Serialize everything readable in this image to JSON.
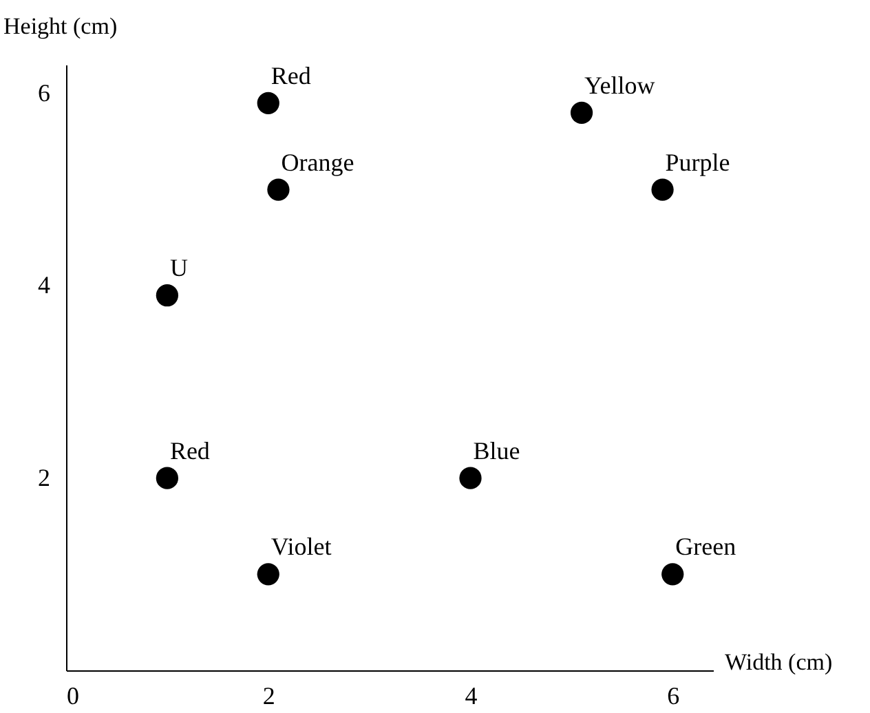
{
  "chart_data": {
    "type": "scatter",
    "xlabel": "Width (cm)",
    "ylabel": "Height (cm)",
    "x": [
      2,
      2.1,
      1,
      1,
      5.1,
      5.9,
      4,
      2,
      6
    ],
    "series": [
      {
        "color": "#000000",
        "values": [
          5.9,
          5,
          3.9,
          2,
          5.8,
          5,
          2,
          1,
          1
        ]
      }
    ],
    "annotations": [
      {
        "text": "Red",
        "x": 2,
        "y": 5.9
      },
      {
        "text": "Orange",
        "x": 2.1,
        "y": 5
      },
      {
        "text": "U",
        "x": 1,
        "y": 3.9
      },
      {
        "text": "Red",
        "x": 1,
        "y": 2
      },
      {
        "text": "Yellow",
        "x": 5.1,
        "y": 5.8
      },
      {
        "text": "Purple",
        "x": 5.9,
        "y": 5
      },
      {
        "text": "Blue",
        "x": 4,
        "y": 2
      },
      {
        "text": "Violet",
        "x": 2,
        "y": 1
      },
      {
        "text": "Green",
        "x": 6,
        "y": 1
      }
    ],
    "xlim": [
      0,
      6.4
    ],
    "ylim": [
      0,
      6.3
    ],
    "xticks": [
      0,
      2,
      4,
      6
    ],
    "yticks": [
      2,
      4,
      6
    ],
    "grid": false
  }
}
